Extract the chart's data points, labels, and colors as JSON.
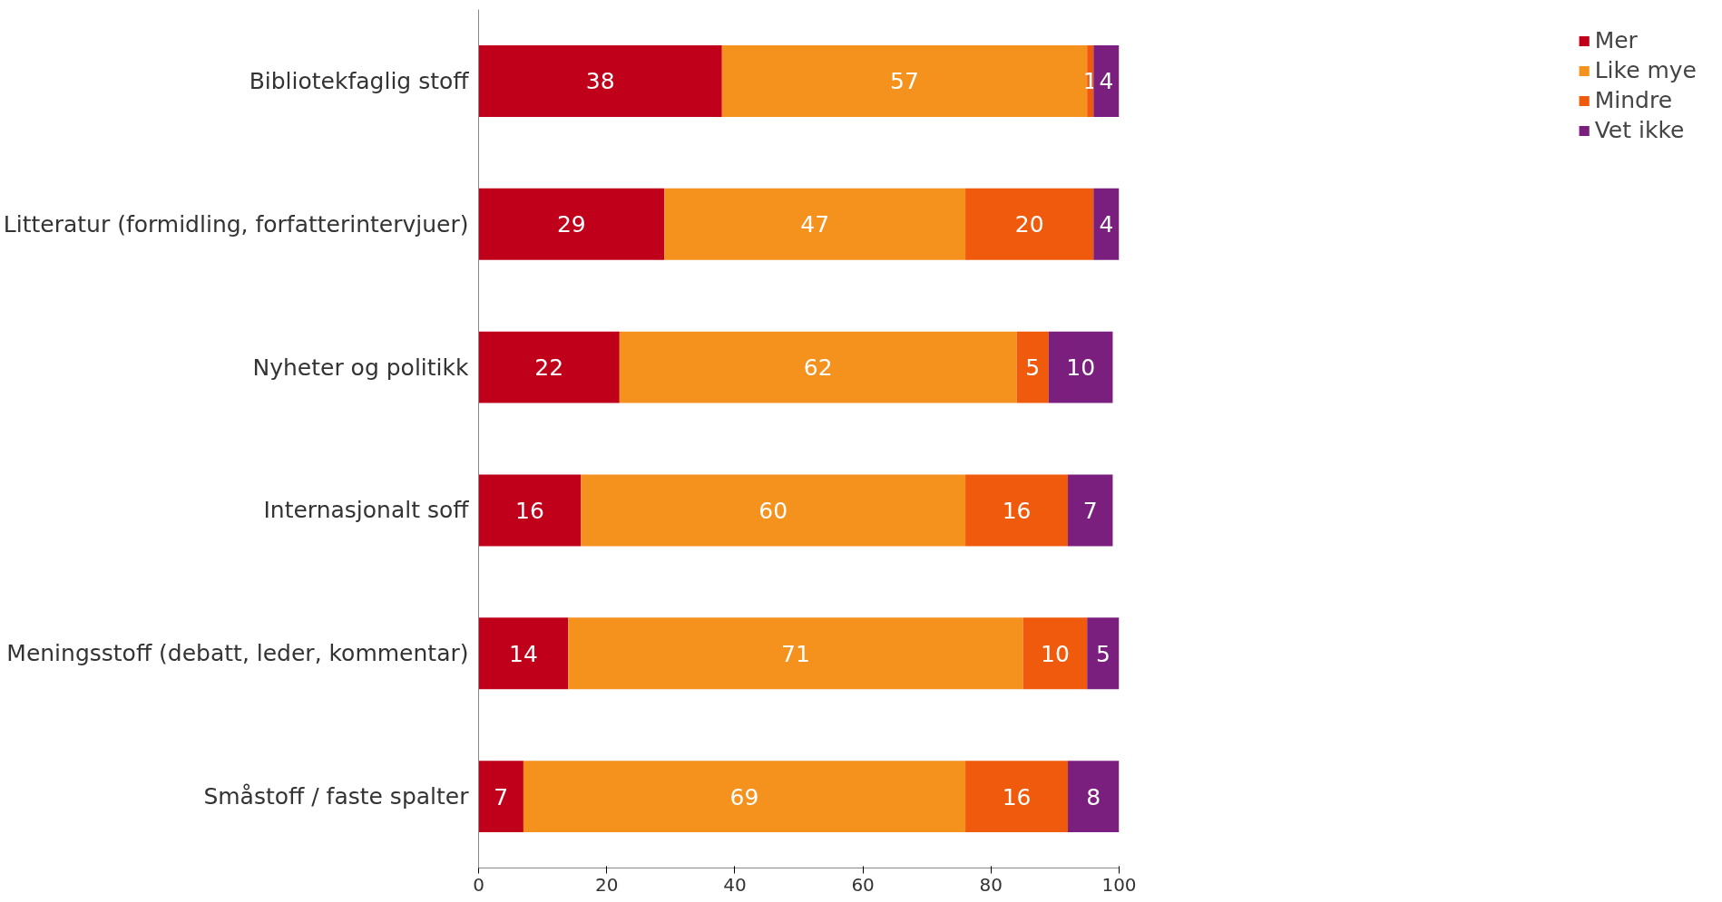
{
  "chart_data": {
    "type": "bar",
    "orientation": "horizontal",
    "stacked": true,
    "data_labels": true,
    "legend": "right",
    "grid": false,
    "categories": [
      "Bibliotekfaglig stoff",
      "Litteratur (formidling, forfatterintervjuer)",
      "Nyheter og politikk",
      "Internasjonalt soff",
      "Meningsstoff (debatt, leder, kommentar)",
      "Småstoff / faste spalter"
    ],
    "xlim": [
      0,
      100
    ],
    "xticks": [
      0,
      20,
      40,
      60,
      80,
      100
    ],
    "series": [
      {
        "name": "Mer",
        "color": "#c0001a",
        "values": [
          38,
          29,
          22,
          16,
          14,
          7
        ]
      },
      {
        "name": "Like mye",
        "color": "#f5921e",
        "values": [
          57,
          47,
          62,
          60,
          71,
          69
        ]
      },
      {
        "name": "Mindre",
        "color": "#ef5a0c",
        "values": [
          1,
          20,
          5,
          16,
          10,
          16
        ]
      },
      {
        "name": "Vet ikke",
        "color": "#7b1f7e",
        "values": [
          4,
          4,
          10,
          7,
          5,
          8
        ]
      }
    ]
  }
}
